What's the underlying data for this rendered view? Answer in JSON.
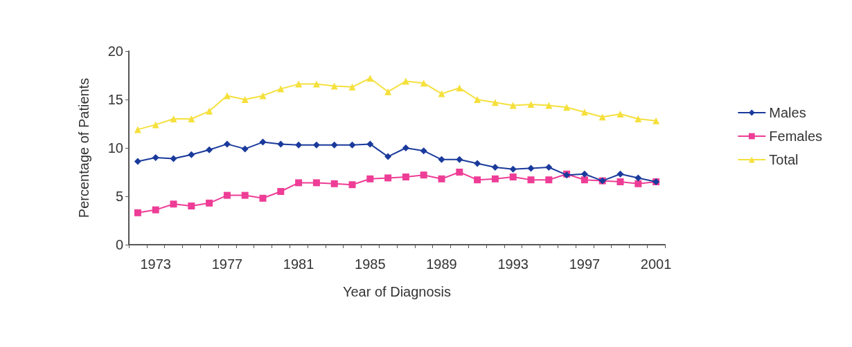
{
  "chart_data": {
    "type": "line",
    "xlabel": "Year of Diagnosis",
    "ylabel": "Percentage of Patients",
    "categories": [
      null,
      "1973",
      null,
      null,
      null,
      "1977",
      null,
      null,
      null,
      "1981",
      null,
      null,
      null,
      "1985",
      null,
      null,
      null,
      "1989",
      null,
      null,
      null,
      "1993",
      null,
      null,
      null,
      "1997",
      null,
      null,
      null,
      "2001"
    ],
    "ylim": [
      0,
      20
    ],
    "yticks": [
      0,
      5,
      10,
      15,
      20
    ],
    "grid": false,
    "legend": "right",
    "line_style": "solid",
    "series": [
      {
        "name": "Males",
        "color": "#1a3a9c",
        "marker": "diamond",
        "values": [
          8.6,
          9.0,
          8.9,
          9.3,
          9.8,
          10.4,
          9.9,
          10.6,
          10.4,
          10.3,
          10.3,
          10.3,
          10.3,
          10.4,
          9.1,
          10.0,
          9.7,
          8.8,
          8.8,
          8.4,
          8.0,
          7.8,
          7.9,
          8.0,
          7.2,
          7.3,
          6.6,
          7.3,
          6.9,
          6.5
        ]
      },
      {
        "name": "Females",
        "color": "#ee3d96",
        "marker": "square",
        "values": [
          3.3,
          3.6,
          4.2,
          4.0,
          4.3,
          5.1,
          5.1,
          4.8,
          5.5,
          6.4,
          6.4,
          6.3,
          6.2,
          6.8,
          6.9,
          7.0,
          7.2,
          6.8,
          7.5,
          6.7,
          6.8,
          7.0,
          6.7,
          6.7,
          7.3,
          6.7,
          6.6,
          6.5,
          6.3,
          6.5
        ]
      },
      {
        "name": "Total",
        "color": "#f5e03c",
        "marker": "triangle",
        "values": [
          11.9,
          12.4,
          13.0,
          13.0,
          13.8,
          15.4,
          15.0,
          15.4,
          16.1,
          16.6,
          16.6,
          16.4,
          16.3,
          17.2,
          15.8,
          16.9,
          16.7,
          15.6,
          16.2,
          15.0,
          14.7,
          14.4,
          14.5,
          14.4,
          14.2,
          13.7,
          13.2,
          13.5,
          13.0,
          12.8
        ]
      }
    ]
  }
}
